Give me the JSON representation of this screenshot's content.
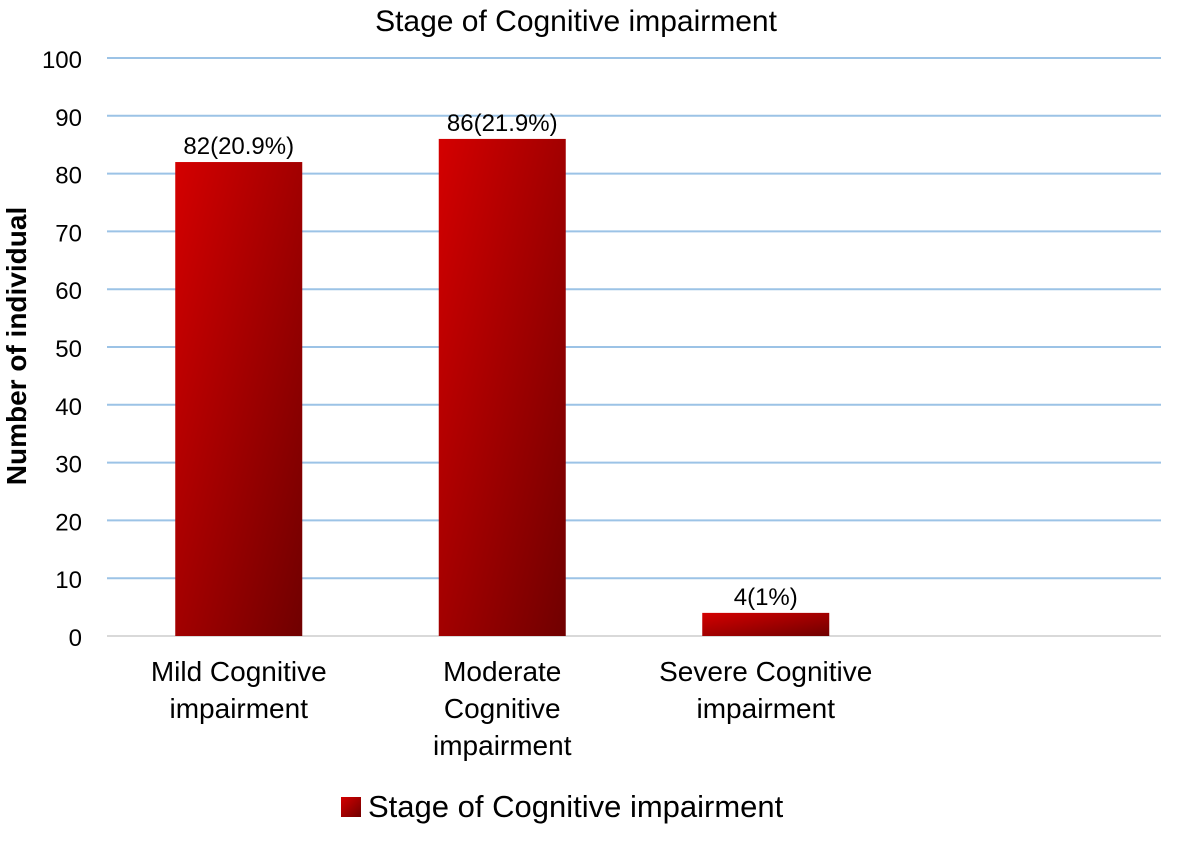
{
  "chart_data": {
    "type": "bar",
    "title": "Stage of Cognitive impairment",
    "ylabel": "Number of individual",
    "xlabel": "",
    "categories": [
      [
        "Mild Cognitive",
        "impairment"
      ],
      [
        "Moderate",
        "Cognitive",
        "impairment"
      ],
      [
        "Severe Cognitive",
        "impairment"
      ],
      [
        ""
      ]
    ],
    "series": [
      {
        "name": "Stage of Cognitive impairment",
        "values": [
          82,
          86,
          4,
          null
        ],
        "data_labels": [
          "82(20.9%)",
          "86(21.9%)",
          "4(1%)",
          ""
        ]
      }
    ],
    "ylim": [
      0,
      100
    ],
    "yticks": [
      "0",
      "10",
      "20",
      "30",
      "40",
      "50",
      "60",
      "70",
      "80",
      "90",
      "100"
    ],
    "grid": true,
    "legend": "bottom",
    "colors": {
      "bar_light": "#d40000",
      "bar_dark": "#700000",
      "grid": "#9cc3e6",
      "baseline": "#d9d9d9"
    }
  }
}
